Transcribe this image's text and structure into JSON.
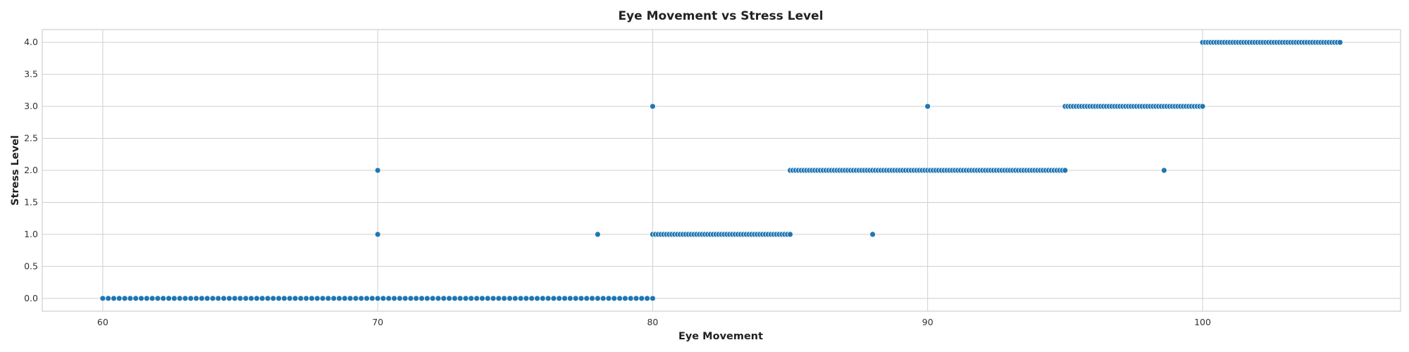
{
  "chart_data": {
    "type": "scatter",
    "title": "Eye Movement vs Stress Level",
    "xlabel": "Eye Movement",
    "ylabel": "Stress Level",
    "xlim": [
      57.8,
      107.2
    ],
    "ylim": [
      -0.2,
      4.2
    ],
    "xticks": [
      60,
      70,
      80,
      90,
      100
    ],
    "xtick_labels": [
      "60",
      "70",
      "80",
      "90",
      "100"
    ],
    "yticks": [
      0.0,
      0.5,
      1.0,
      1.5,
      2.0,
      2.5,
      3.0,
      3.5,
      4.0
    ],
    "ytick_labels": [
      "0.0",
      "0.5",
      "1.0",
      "1.5",
      "2.0",
      "2.5",
      "3.0",
      "3.5",
      "4.0"
    ],
    "grid": true,
    "marker_color": "#1f77b4",
    "marker_edge_color": "#ffffff",
    "clusters": [
      {
        "y": 0,
        "x_start": 60.0,
        "x_end": 80.0,
        "step": 0.2
      },
      {
        "y": 1,
        "x_start": 80.0,
        "x_end": 85.0,
        "step": 0.1
      },
      {
        "y": 2,
        "x_start": 85.0,
        "x_end": 95.0,
        "step": 0.1
      },
      {
        "y": 3,
        "x_start": 95.0,
        "x_end": 100.0,
        "step": 0.1
      },
      {
        "y": 4,
        "x_start": 100.0,
        "x_end": 105.0,
        "step": 0.1
      }
    ],
    "outliers": [
      {
        "x": 70.0,
        "y": 2
      },
      {
        "x": 70.0,
        "y": 1
      },
      {
        "x": 78.0,
        "y": 1
      },
      {
        "x": 80.0,
        "y": 3
      },
      {
        "x": 88.0,
        "y": 1
      },
      {
        "x": 90.0,
        "y": 3
      },
      {
        "x": 98.6,
        "y": 2
      }
    ]
  }
}
